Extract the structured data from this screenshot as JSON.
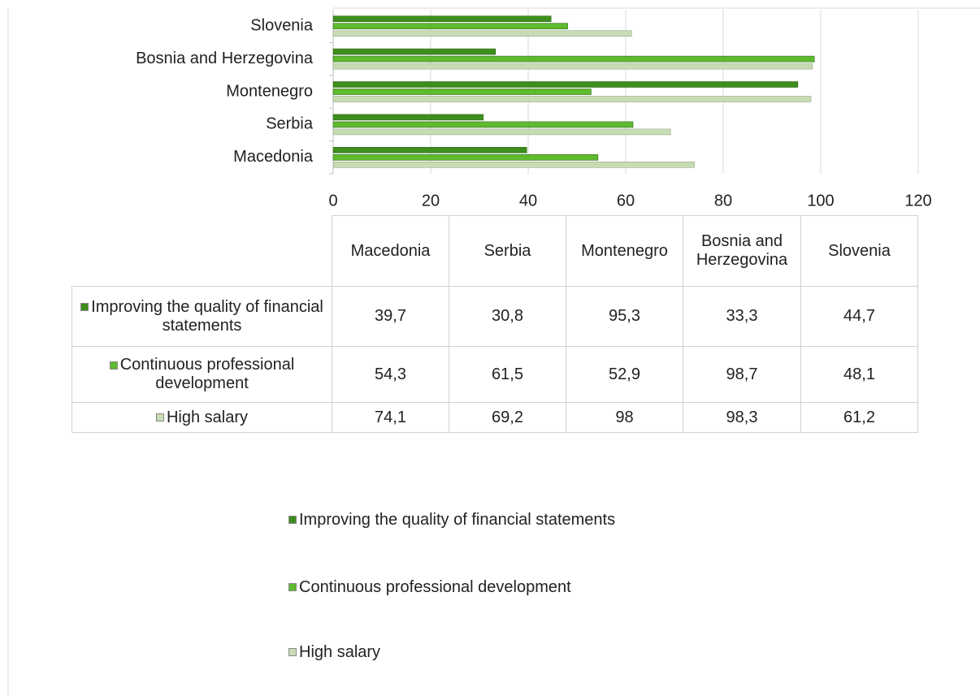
{
  "chart_data": {
    "type": "bar",
    "orientation": "horizontal",
    "categories": [
      "Macedonia",
      "Serbia",
      "Montenegro",
      "Bosnia and Herzegovina",
      "Slovenia"
    ],
    "series": [
      {
        "name": "Improving the quality of financial statements",
        "color": "#3e8e1e",
        "values": [
          39.7,
          30.8,
          95.3,
          33.3,
          44.7
        ],
        "value_labels": [
          "39,7",
          "30,8",
          "95,3",
          "33,3",
          "44,7"
        ]
      },
      {
        "name": "Continuous professional development",
        "color": "#5fba2f",
        "values": [
          54.3,
          61.5,
          52.9,
          98.7,
          48.1
        ],
        "value_labels": [
          "54,3",
          "61,5",
          "52,9",
          "98,7",
          "48,1"
        ]
      },
      {
        "name": "High salary",
        "color": "#c8dcb4",
        "values": [
          74.1,
          69.2,
          98,
          98.3,
          61.2
        ],
        "value_labels": [
          "74,1",
          "69,2",
          "98",
          "98,3",
          "61,2"
        ]
      }
    ],
    "xlim": [
      0,
      120
    ],
    "xticks": [
      0,
      20,
      40,
      60,
      80,
      100,
      120
    ],
    "grid": true
  }
}
